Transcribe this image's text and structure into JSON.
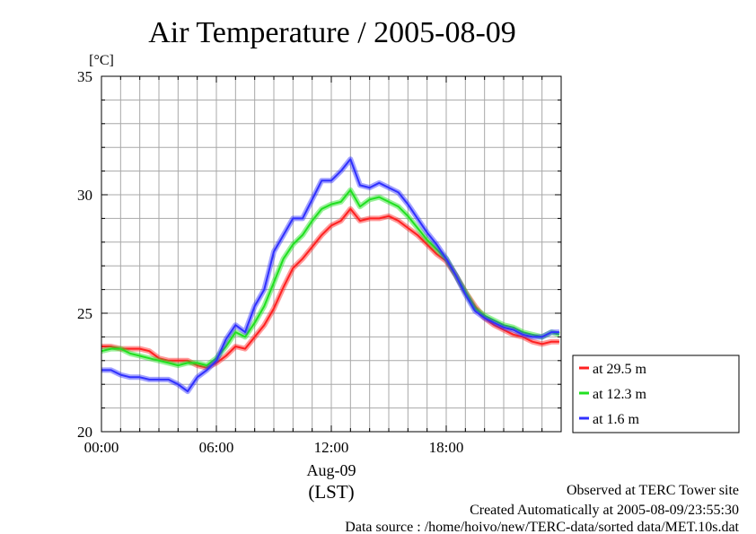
{
  "chart_data": {
    "type": "line",
    "title": "Air Temperature / 2005-08-09",
    "ylabel": "[°C]",
    "xlabel_date": "Aug-09",
    "xlabel_unit": "(LST)",
    "xlim": [
      0,
      24
    ],
    "ylim": [
      20,
      35
    ],
    "x_ticks": [
      0,
      6,
      12,
      18
    ],
    "x_tick_labels": [
      "00:00",
      "06:00",
      "12:00",
      "18:00"
    ],
    "y_ticks": [
      20,
      25,
      30,
      35
    ],
    "y_tick_labels": [
      "20",
      "25",
      "30",
      "35"
    ],
    "grid": true,
    "legend_position": "right",
    "series": [
      {
        "name": "at 29.5 m",
        "color": "#ff2020",
        "x": [
          0,
          0.5,
          1,
          1.5,
          2,
          2.5,
          3,
          3.5,
          4,
          4.5,
          5,
          5.5,
          6,
          6.5,
          7,
          7.5,
          8,
          8.5,
          9,
          9.5,
          10,
          10.5,
          11,
          11.5,
          12,
          12.5,
          13,
          13.5,
          14,
          14.5,
          15,
          15.5,
          16,
          16.5,
          17,
          17.5,
          18,
          18.5,
          19,
          19.5,
          20,
          20.5,
          21,
          21.5,
          22,
          22.5,
          23,
          23.5,
          23.9
        ],
        "y": [
          23.6,
          23.6,
          23.5,
          23.5,
          23.5,
          23.4,
          23.1,
          23.0,
          23.0,
          23.0,
          22.8,
          22.7,
          22.9,
          23.2,
          23.6,
          23.5,
          24.0,
          24.5,
          25.2,
          26.1,
          26.9,
          27.3,
          27.8,
          28.3,
          28.7,
          28.9,
          29.4,
          28.9,
          29.0,
          29.0,
          29.1,
          28.9,
          28.6,
          28.3,
          27.9,
          27.5,
          27.2,
          26.6,
          25.9,
          25.3,
          24.8,
          24.5,
          24.3,
          24.1,
          24.0,
          23.8,
          23.7,
          23.8,
          23.8
        ]
      },
      {
        "name": "at 12.3 m",
        "color": "#20e020",
        "x": [
          0,
          0.5,
          1,
          1.5,
          2,
          2.5,
          3,
          3.5,
          4,
          4.5,
          5,
          5.5,
          6,
          6.5,
          7,
          7.5,
          8,
          8.5,
          9,
          9.5,
          10,
          10.5,
          11,
          11.5,
          12,
          12.5,
          13,
          13.5,
          14,
          14.5,
          15,
          15.5,
          16,
          16.5,
          17,
          17.5,
          18,
          18.5,
          19,
          19.5,
          20,
          20.5,
          21,
          21.5,
          22,
          22.5,
          23,
          23.5,
          23.9
        ],
        "y": [
          23.4,
          23.5,
          23.5,
          23.3,
          23.2,
          23.1,
          23.0,
          22.9,
          22.8,
          22.9,
          22.9,
          22.8,
          23.1,
          23.6,
          24.2,
          24.0,
          24.6,
          25.3,
          26.3,
          27.3,
          27.9,
          28.3,
          28.9,
          29.4,
          29.6,
          29.7,
          30.2,
          29.5,
          29.8,
          29.9,
          29.7,
          29.5,
          29.1,
          28.6,
          28.1,
          27.7,
          27.3,
          26.6,
          25.9,
          25.2,
          24.9,
          24.7,
          24.5,
          24.4,
          24.2,
          24.1,
          24.0,
          24.2,
          24.1
        ]
      },
      {
        "name": "at 1.6 m",
        "color": "#3030ff",
        "x": [
          0,
          0.5,
          1,
          1.5,
          2,
          2.5,
          3,
          3.5,
          4,
          4.5,
          5,
          5.5,
          6,
          6.5,
          7,
          7.5,
          8,
          8.5,
          9,
          9.5,
          10,
          10.5,
          11,
          11.5,
          12,
          12.5,
          13,
          13.5,
          14,
          14.5,
          15,
          15.5,
          16,
          16.5,
          17,
          17.5,
          18,
          18.5,
          19,
          19.5,
          20,
          20.5,
          21,
          21.5,
          22,
          22.5,
          23,
          23.5,
          23.9
        ],
        "y": [
          22.6,
          22.6,
          22.4,
          22.3,
          22.3,
          22.2,
          22.2,
          22.2,
          22.0,
          21.7,
          22.3,
          22.6,
          23.0,
          23.9,
          24.5,
          24.2,
          25.3,
          26.0,
          27.6,
          28.3,
          29.0,
          29.0,
          29.8,
          30.6,
          30.6,
          31.0,
          31.5,
          30.4,
          30.3,
          30.5,
          30.3,
          30.1,
          29.6,
          29.0,
          28.4,
          27.9,
          27.3,
          26.6,
          25.8,
          25.1,
          24.8,
          24.6,
          24.4,
          24.3,
          24.1,
          24.0,
          24.0,
          24.2,
          24.2
        ]
      }
    ]
  },
  "footer": {
    "line1": "Observed at TERC Tower site",
    "line2": "Created Automatically at 2005-08-09/23:55:30",
    "line3": "Data source : /home/hoivo/new/TERC-data/sorted  data/MET.10s.dat"
  }
}
